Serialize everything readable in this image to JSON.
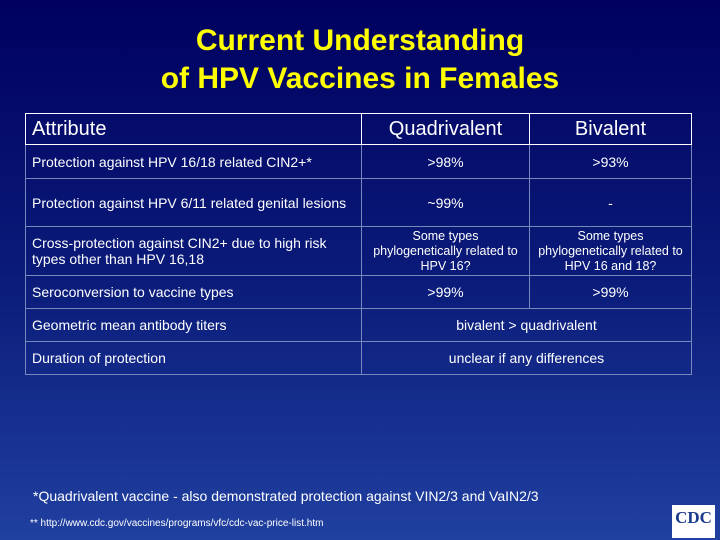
{
  "title": [
    "Current Understanding",
    "of HPV Vaccines in Females"
  ],
  "table": {
    "header": [
      "Attribute",
      "Quadrivalent",
      "Bivalent"
    ],
    "rows": [
      [
        "Protection against HPV 16/18 related CIN2+*",
        ">98%",
        ">93%"
      ],
      [
        "Protection against HPV 6/11 related genital lesions",
        "~99%",
        "-"
      ],
      [
        "Cross-protection against CIN2+ due to high risk types other than HPV 16,18",
        "Some types phylogenetically related to HPV 16?",
        "Some types phylogenetically related to HPV 16 and 18?"
      ],
      [
        "Seroconversion to vaccine types",
        ">99%",
        ">99%"
      ],
      [
        "Geometric mean antibody titers",
        "bivalent > quadrivalent"
      ],
      [
        "Duration of protection",
        "unclear if any differences"
      ]
    ]
  },
  "footnotes": [
    "*Quadrivalent vaccine - also demonstrated protection against VIN2/3 and VaIN2/3",
    "** http://www.cdc.gov/vaccines/programs/vfc/cdc-vac-price-list.htm"
  ],
  "logo": "CDC"
}
